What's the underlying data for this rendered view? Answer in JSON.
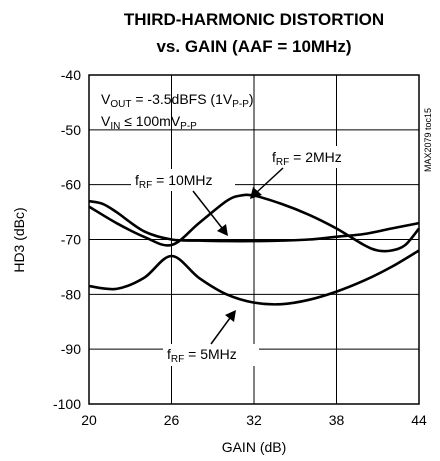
{
  "chart_data": {
    "type": "line",
    "title_line1": "THIRD-HARMONIC DISTORTION",
    "title_line2": "vs. GAIN (AAF = 10MHz)",
    "xlabel": "GAIN (dB)",
    "ylabel": "HD3 (dBc)",
    "xlim": [
      20,
      44
    ],
    "ylim": [
      -100,
      -40
    ],
    "x_ticks": [
      "20",
      "26",
      "32",
      "38",
      "44"
    ],
    "y_ticks": [
      "-40",
      "-50",
      "-60",
      "-70",
      "-80",
      "-90",
      "-100"
    ],
    "grid": true,
    "watermark": "MAX2079 toc15",
    "conditions": {
      "line1": {
        "main": "V",
        "sub": "OUT",
        "rest": " = -3.5dBFS (1V",
        "sub2": "P-P",
        "tail": ")"
      },
      "line2": {
        "main": "V",
        "sub": "IN",
        "rest": " ≤ 100mV",
        "sub2": "P-P",
        "tail": ""
      }
    },
    "series": [
      {
        "label_main": "f",
        "label_sub": "RF",
        "label_rest": " = 2MHz",
        "x": [
          20,
          22,
          24,
          26,
          28,
          30,
          31,
          32,
          34,
          36,
          38,
          40,
          41,
          42,
          43,
          44
        ],
        "y": [
          -64,
          -67,
          -69.5,
          -71,
          -67,
          -63,
          -62,
          -62,
          -63.5,
          -65.5,
          -68,
          -71,
          -72,
          -72,
          -71,
          -68
        ]
      },
      {
        "label_main": "f",
        "label_sub": "RF",
        "label_rest": " = 10MHz",
        "x": [
          20,
          21,
          22,
          24,
          26,
          28,
          30,
          32,
          34,
          36,
          38,
          40,
          42,
          44
        ],
        "y": [
          -63,
          -63.5,
          -65,
          -68.5,
          -70,
          -70.2,
          -70.3,
          -70.3,
          -70.2,
          -70,
          -69.5,
          -69,
          -68,
          -67
        ]
      },
      {
        "label_main": "f",
        "label_sub": "RF",
        "label_rest": " = 5MHz",
        "x": [
          20,
          22,
          24,
          26,
          28,
          30,
          32,
          34,
          36,
          38,
          40,
          42,
          44
        ],
        "y": [
          -78.5,
          -79,
          -77,
          -73,
          -77,
          -80,
          -81.5,
          -81.8,
          -81,
          -79.5,
          -77.5,
          -75,
          -72
        ]
      }
    ]
  }
}
